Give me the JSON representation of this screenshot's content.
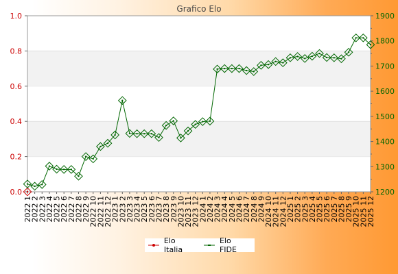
{
  "chart_data": {
    "type": "line",
    "title": "Grafico Elo",
    "categories": [
      "2022 1",
      "2022 2",
      "2022 3",
      "2022 4",
      "2022 5",
      "2022 6",
      "2022 7",
      "2022 8",
      "2022 9",
      "2022 10",
      "2022 11",
      "2022 12",
      "2023 1",
      "2023 2",
      "2023 3",
      "2023 4",
      "2023 5",
      "2023 6",
      "2023 7",
      "2023 8",
      "2023 9",
      "2023 10",
      "2023 11",
      "2023 12",
      "2024 1",
      "2024 2",
      "2024 3",
      "2024 4",
      "2024 5",
      "2024 6",
      "2024 7",
      "2024 8",
      "2024 9",
      "2024 10",
      "2024 11",
      "2024 12",
      "2025 1",
      "2025 2",
      "2025 3",
      "2025 4",
      "2025 5",
      "2025 6",
      "2025 7",
      "2025 8",
      "2025 9",
      "2025 10",
      "2025 11",
      "2025 12"
    ],
    "y_left": {
      "range": [
        0,
        1.0
      ],
      "ticks": [
        "0.0",
        "0.2",
        "0.4",
        "0.6",
        "0.8",
        "1.0"
      ],
      "color": "#cc0000"
    },
    "y_right": {
      "range": [
        1200,
        1900
      ],
      "ticks": [
        "1200",
        "1300",
        "1400",
        "1500",
        "1600",
        "1700",
        "1800",
        "1900"
      ],
      "color": "#006600"
    },
    "series": [
      {
        "name": "Elo Italia",
        "axis": "left",
        "color": "#cc0000",
        "values": [
          0,
          null,
          null,
          null,
          null,
          null,
          null,
          null,
          null,
          null,
          null,
          null,
          null,
          null,
          null,
          null,
          null,
          null,
          null,
          null,
          null,
          null,
          null,
          null,
          null,
          null,
          null,
          null,
          null,
          null,
          null,
          null,
          null,
          null,
          null,
          null,
          null,
          null,
          null,
          null,
          null,
          null,
          null,
          null,
          null,
          null,
          null,
          null
        ]
      },
      {
        "name": "Elo FIDE",
        "axis": "right",
        "color": "#006600",
        "values": [
          1231,
          1222,
          1229,
          1302,
          1290,
          1289,
          1289,
          1262,
          1340,
          1331,
          1380,
          1393,
          1426,
          1563,
          1432,
          1431,
          1431,
          1431,
          1416,
          1464,
          1482,
          1414,
          1442,
          1468,
          1479,
          1481,
          1688,
          1690,
          1690,
          1690,
          1682,
          1678,
          1703,
          1706,
          1718,
          1713,
          1733,
          1738,
          1730,
          1739,
          1750,
          1734,
          1733,
          1729,
          1755,
          1812,
          1812,
          1785
        ]
      }
    ],
    "grid": "horizontal bands",
    "legend": "bottom"
  }
}
